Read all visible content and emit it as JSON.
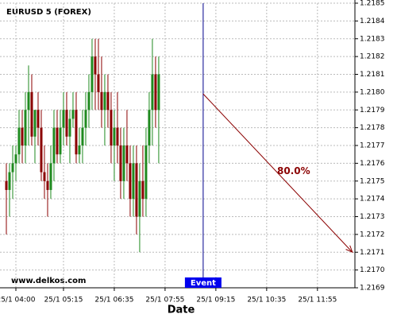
{
  "chart_data": {
    "type": "candlestick",
    "title": "EURUSD 5 (FOREX)",
    "watermark": "www.delkos.com",
    "x_label": "Date",
    "x": [
      "25/1 03:45",
      "25/1 03:50",
      "25/1 03:55",
      "25/1 04:00",
      "25/1 04:05",
      "25/1 04:10",
      "25/1 04:15",
      "25/1 04:20",
      "25/1 04:25",
      "25/1 04:30",
      "25/1 04:35",
      "25/1 04:40",
      "25/1 04:45",
      "25/1 04:50",
      "25/1 04:55",
      "25/1 05:00",
      "25/1 05:05",
      "25/1 05:10",
      "25/1 05:15",
      "25/1 05:20",
      "25/1 05:25",
      "25/1 05:30",
      "25/1 05:35",
      "25/1 05:40",
      "25/1 05:45",
      "25/1 05:50",
      "25/1 05:55",
      "25/1 06:00",
      "25/1 06:05",
      "25/1 06:10",
      "25/1 06:15",
      "25/1 06:20",
      "25/1 06:25",
      "25/1 06:30",
      "25/1 06:35",
      "25/1 06:40",
      "25/1 06:45",
      "25/1 06:50",
      "25/1 06:55",
      "25/1 07:00",
      "25/1 07:05",
      "25/1 07:10",
      "25/1 07:15",
      "25/1 07:20",
      "25/1 07:25",
      "25/1 07:30",
      "25/1 07:35",
      "25/1 07:40",
      "25/1 07:45"
    ],
    "open": [
      1.2175,
      1.21745,
      1.21755,
      1.2176,
      1.21765,
      1.2178,
      1.2177,
      1.2179,
      1.218,
      1.21775,
      1.2179,
      1.2178,
      1.21755,
      1.2175,
      1.21745,
      1.2176,
      1.2178,
      1.21765,
      1.2178,
      1.2179,
      1.21775,
      1.21785,
      1.2179,
      1.21765,
      1.2177,
      1.2178,
      1.2179,
      1.218,
      1.2182,
      1.2181,
      1.218,
      1.2179,
      1.218,
      1.2179,
      1.2177,
      1.2178,
      1.2177,
      1.2175,
      1.2177,
      1.2176,
      1.2174,
      1.2176,
      1.2173,
      1.2175,
      1.2174,
      1.2177,
      1.2179,
      1.2181,
      1.2179
    ],
    "high": [
      1.2176,
      1.2176,
      1.2177,
      1.2177,
      1.2179,
      1.2179,
      1.218,
      1.21815,
      1.2181,
      1.2179,
      1.218,
      1.2179,
      1.2177,
      1.2176,
      1.2177,
      1.2179,
      1.2179,
      1.2179,
      1.218,
      1.218,
      1.2179,
      1.218,
      1.218,
      1.2178,
      1.2179,
      1.218,
      1.2181,
      1.2183,
      1.2183,
      1.2183,
      1.2182,
      1.2181,
      1.2181,
      1.218,
      1.2179,
      1.218,
      1.2178,
      1.2178,
      1.2179,
      1.2177,
      1.2177,
      1.2177,
      1.2176,
      1.2177,
      1.2178,
      1.218,
      1.2183,
      1.2182,
      1.2182
    ],
    "low": [
      1.2172,
      1.2173,
      1.2174,
      1.2175,
      1.2176,
      1.2176,
      1.2176,
      1.2177,
      1.2177,
      1.2176,
      1.2177,
      1.2175,
      1.2174,
      1.2173,
      1.2174,
      1.2175,
      1.2176,
      1.2176,
      1.2177,
      1.2177,
      1.2176,
      1.2178,
      1.2176,
      1.2176,
      1.2176,
      1.2177,
      1.2178,
      1.2179,
      1.2179,
      1.2179,
      1.2178,
      1.2177,
      1.2178,
      1.2176,
      1.2175,
      1.2176,
      1.2174,
      1.2174,
      1.2175,
      1.2173,
      1.2173,
      1.2172,
      1.2171,
      1.2173,
      1.2173,
      1.2176,
      1.2177,
      1.2178,
      1.2176
    ],
    "close": [
      1.21745,
      1.21755,
      1.2176,
      1.21765,
      1.2178,
      1.2177,
      1.2179,
      1.218,
      1.21775,
      1.2179,
      1.2178,
      1.21755,
      1.2175,
      1.21745,
      1.2176,
      1.2178,
      1.21765,
      1.2178,
      1.2179,
      1.21775,
      1.21785,
      1.2179,
      1.21765,
      1.2177,
      1.2178,
      1.2179,
      1.218,
      1.2182,
      1.2181,
      1.218,
      1.2179,
      1.218,
      1.2179,
      1.2177,
      1.2178,
      1.2177,
      1.2175,
      1.2177,
      1.2176,
      1.2174,
      1.2176,
      1.2173,
      1.2175,
      1.2174,
      1.2177,
      1.2179,
      1.2181,
      1.2179,
      1.2181
    ],
    "up_color": "#1f8a1f",
    "down_color": "#8b0000",
    "ylim": [
      1.2169,
      1.2185
    ],
    "yticks": [
      1.2169,
      {
        "value": 1.217,
        "label": "1.2170"
      },
      1.2171,
      1.2172,
      1.2173,
      1.2174,
      1.2175,
      1.2176,
      1.2177,
      1.2178,
      1.2179,
      {
        "value": 1.218,
        "label": "1.2180"
      },
      1.2181,
      1.2182,
      1.2183,
      1.2184,
      1.2185
    ],
    "xlim": [
      "25/1 03:35",
      "25/1 12:54"
    ],
    "xticks": [
      "25/1 04:00",
      "25/1 05:15",
      "25/1 06:35",
      "25/1 07:55",
      "25/1 09:15",
      "25/1 10:35",
      "25/1 11:55"
    ],
    "grid": true,
    "event": {
      "label": "Event",
      "x": "25/1 08:55",
      "color": "#00008b"
    },
    "forecast": {
      "label": "80.0%",
      "x": [
        "25/1 08:55",
        "25/1 12:50"
      ],
      "values": [
        1.21799,
        1.2171
      ],
      "color": "#8b0000"
    }
  }
}
